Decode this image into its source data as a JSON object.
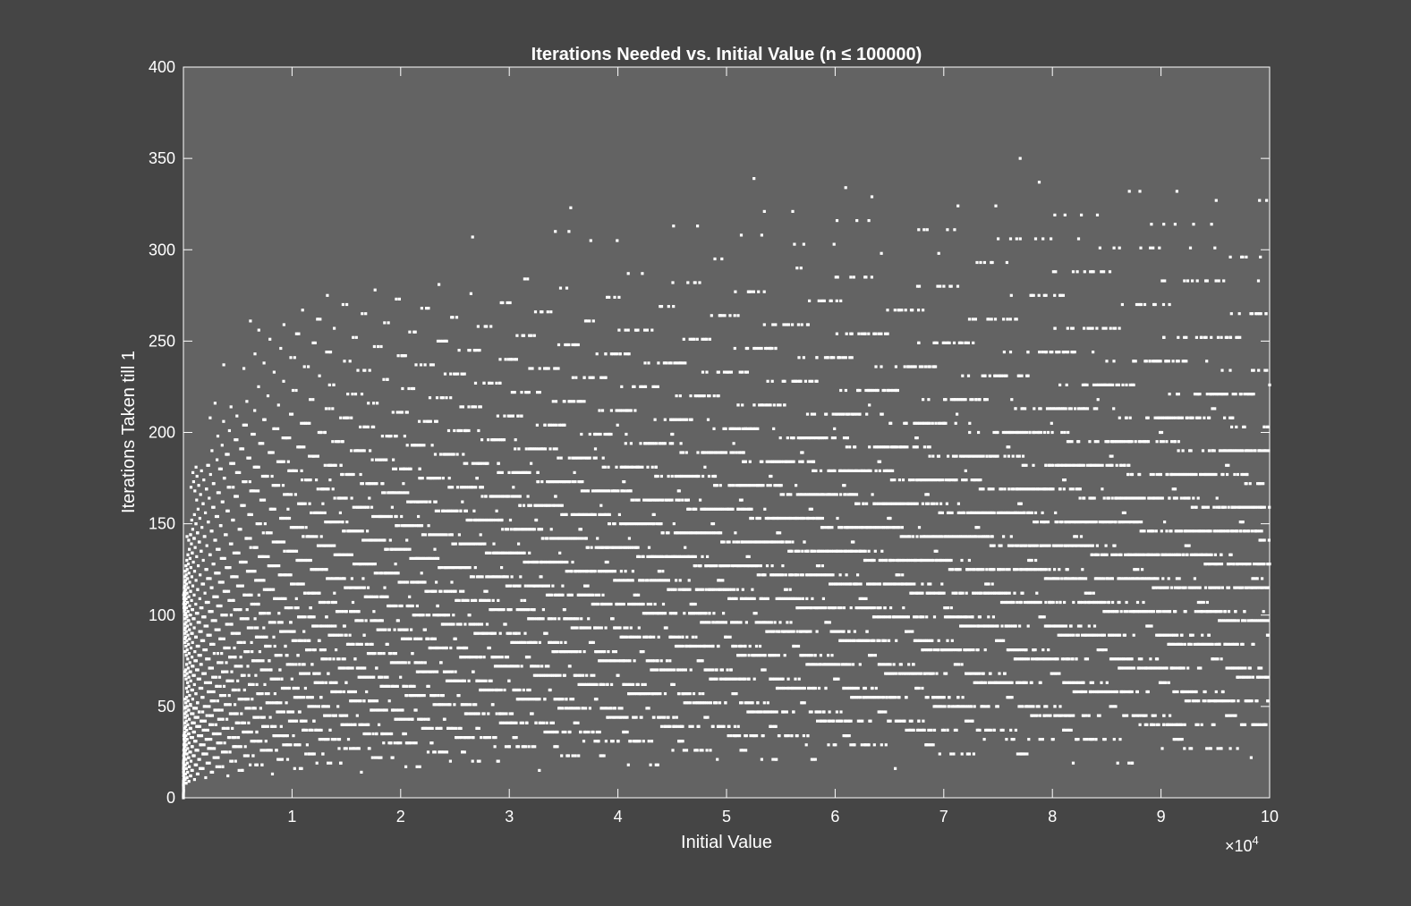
{
  "chart_data": {
    "type": "scatter",
    "title": "Iterations Needed vs. Initial Value (n ≤ 100000)",
    "xlabel": "Initial Value",
    "ylabel": "Iterations Taken till 1",
    "x_exponent_label": "×10",
    "x_exponent_power": "4",
    "xlim": [
      0,
      10
    ],
    "ylim": [
      0,
      400
    ],
    "x_ticks": [
      1,
      2,
      3,
      4,
      5,
      6,
      7,
      8,
      9,
      10
    ],
    "x_tick_labels": [
      "1",
      "2",
      "3",
      "4",
      "5",
      "6",
      "7",
      "8",
      "9",
      "10"
    ],
    "y_ticks": [
      0,
      50,
      100,
      150,
      200,
      250,
      300,
      350,
      400
    ],
    "y_tick_labels": [
      "0",
      "50",
      "100",
      "150",
      "200",
      "250",
      "300",
      "350",
      "400"
    ],
    "grid": false,
    "legend": "none",
    "colors": {
      "figure_bg": "#454545",
      "axes_bg": "#636363",
      "marker": "#ffffff",
      "axis": "#ffffff"
    },
    "series": [
      {
        "marker": "dot",
        "note_generator": "collatz_total_stopping_time",
        "n_max": 100000,
        "x_scale_divisor": 10000
      }
    ]
  }
}
